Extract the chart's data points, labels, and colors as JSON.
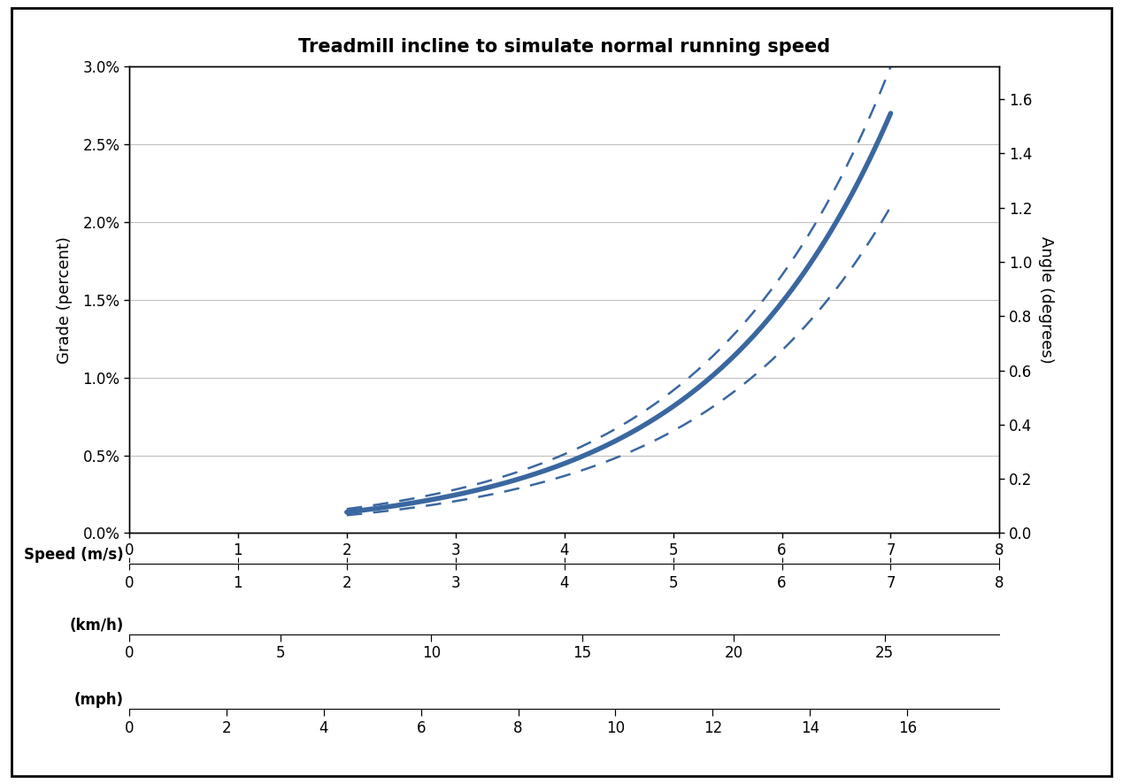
{
  "title": "Treadmill incline to simulate normal running speed",
  "xlabel_ms": "Speed (m/s)",
  "xlabel_kmh": "(km/h)",
  "xlabel_mph": "(mph)",
  "ylabel_left": "Grade (percent)",
  "ylabel_right": "Angle (degrees)",
  "line_color": "#3a67a0",
  "bg_color": "#ffffff",
  "x_ms_min": 0,
  "x_ms_max": 8,
  "y_grade_min": 0.0,
  "y_grade_max": 0.03,
  "y_angle_min": 0.0,
  "y_angle_max": 1.72,
  "grade_ticks": [
    0.0,
    0.005,
    0.01,
    0.015,
    0.02,
    0.025,
    0.03
  ],
  "angle_ticks": [
    0.0,
    0.2,
    0.4,
    0.6,
    0.8,
    1.0,
    1.2,
    1.4,
    1.6
  ],
  "ms_ticks": [
    0,
    1,
    2,
    3,
    4,
    5,
    6,
    7,
    8
  ],
  "kmh_ticks": [
    0,
    5,
    10,
    15,
    20,
    25
  ],
  "mph_ticks": [
    0,
    2,
    4,
    6,
    8,
    10,
    12,
    14,
    16
  ]
}
